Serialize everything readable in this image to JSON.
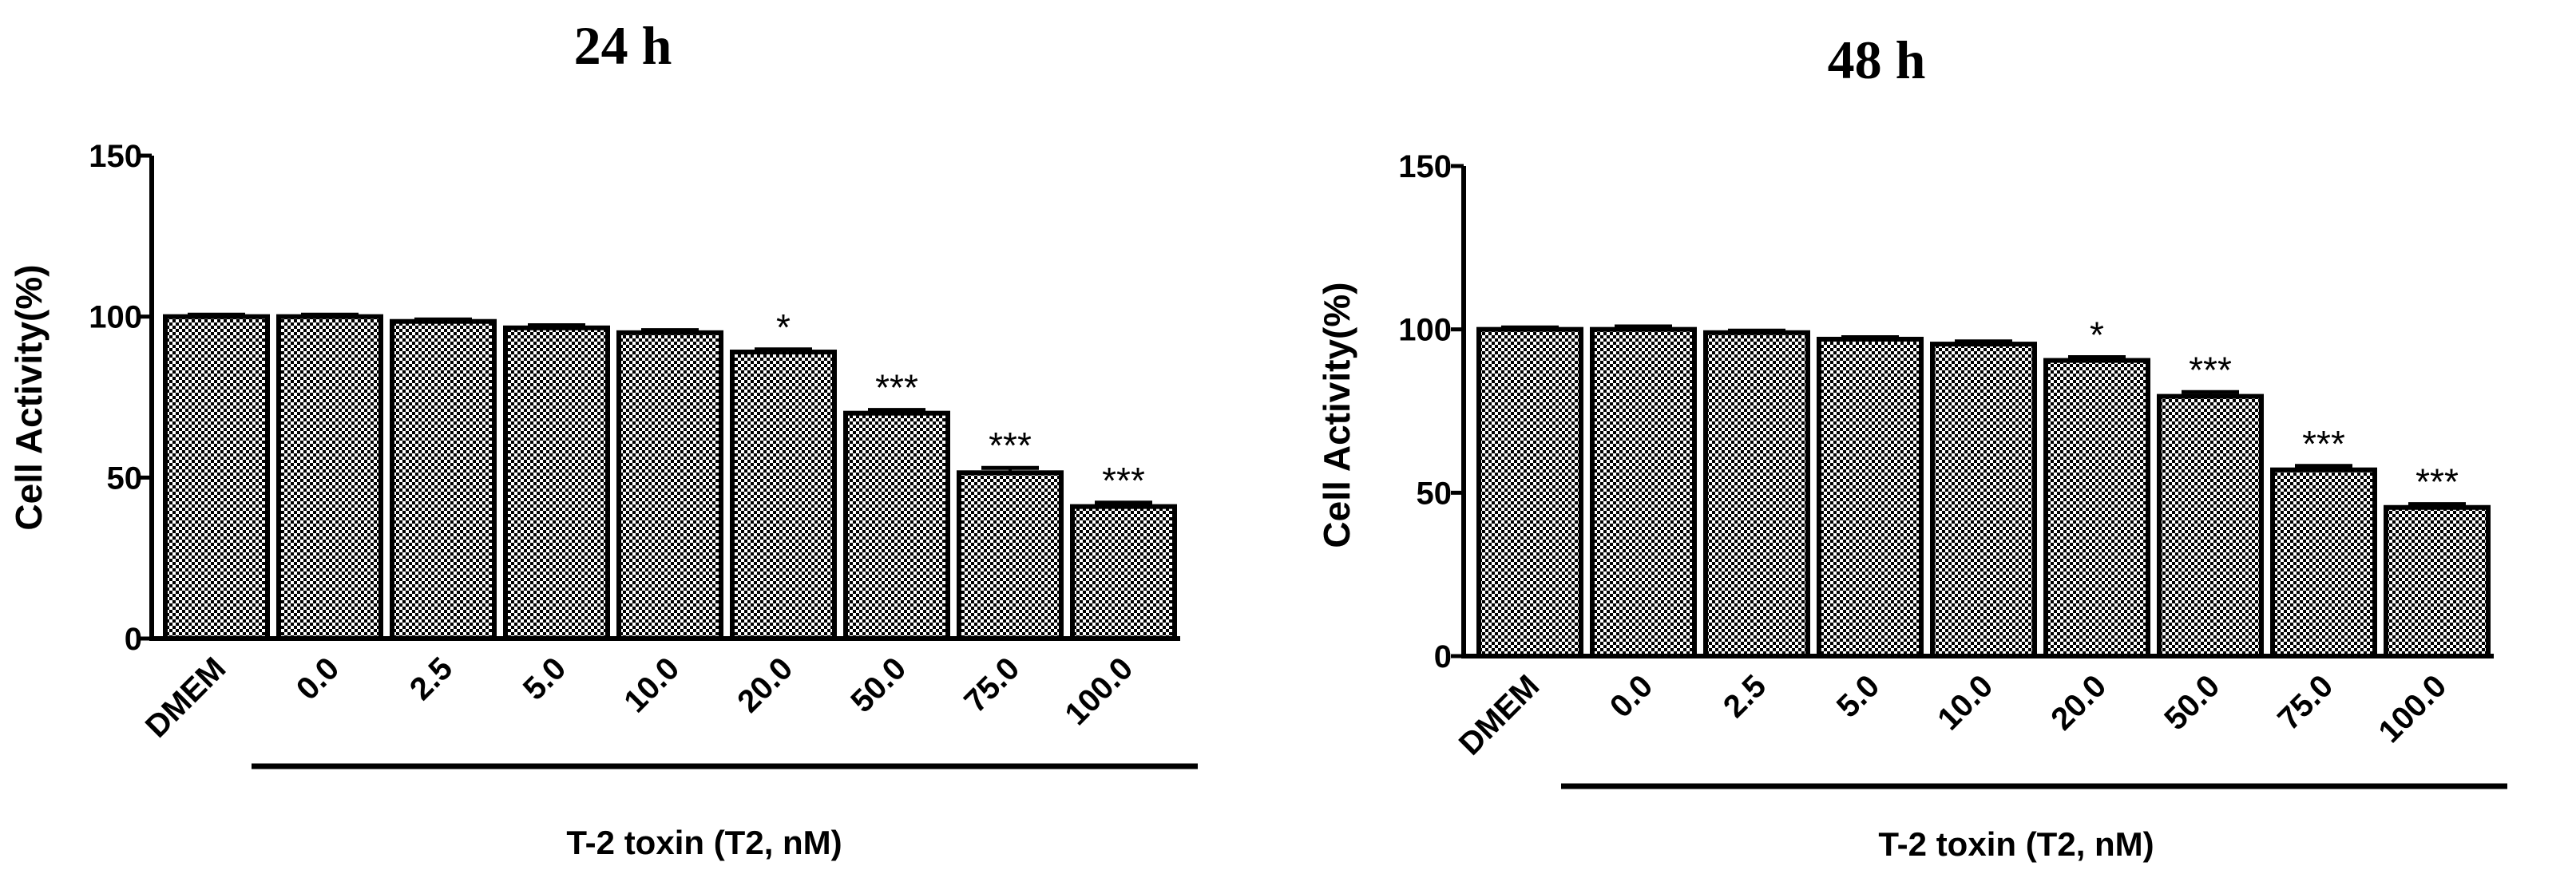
{
  "chart_data": [
    {
      "type": "bar",
      "title": "24 h",
      "ylabel": "Cell Activity(%)",
      "xlabel": "T-2 toxin (T2, nM)",
      "ylim": [
        0,
        150
      ],
      "yticks": [
        0,
        50,
        100,
        150
      ],
      "categories": [
        "DMEM",
        "0.0",
        "2.5",
        "5.0",
        "10.0",
        "20.0",
        "50.0",
        "75.0",
        "100.0"
      ],
      "values": [
        100,
        100,
        98.5,
        96.5,
        95,
        89,
        70,
        51.5,
        41
      ],
      "errors": [
        0.6,
        0.6,
        0.6,
        0.8,
        0.8,
        0.8,
        1.0,
        1.5,
        1.2
      ],
      "significance": [
        "",
        "",
        "",
        "",
        "",
        "*",
        "***",
        "***",
        "***"
      ]
    },
    {
      "type": "bar",
      "title": "48 h",
      "ylabel": "Cell Activity(%)",
      "xlabel": "T-2 toxin (T2, nM)",
      "ylim": [
        0,
        150
      ],
      "yticks": [
        0,
        50,
        100,
        150
      ],
      "categories": [
        "DMEM",
        "0.0",
        "2.5",
        "5.0",
        "10.0",
        "20.0",
        "50.0",
        "75.0",
        "100.0"
      ],
      "values": [
        100,
        100,
        99,
        97,
        95.5,
        90.5,
        79.5,
        57,
        45.5
      ],
      "errors": [
        0.6,
        0.9,
        0.6,
        0.6,
        0.8,
        1.0,
        1.3,
        1.2,
        1.0
      ],
      "significance": [
        "",
        "",
        "",
        "",
        "",
        "*",
        "***",
        "***",
        "***"
      ]
    }
  ]
}
